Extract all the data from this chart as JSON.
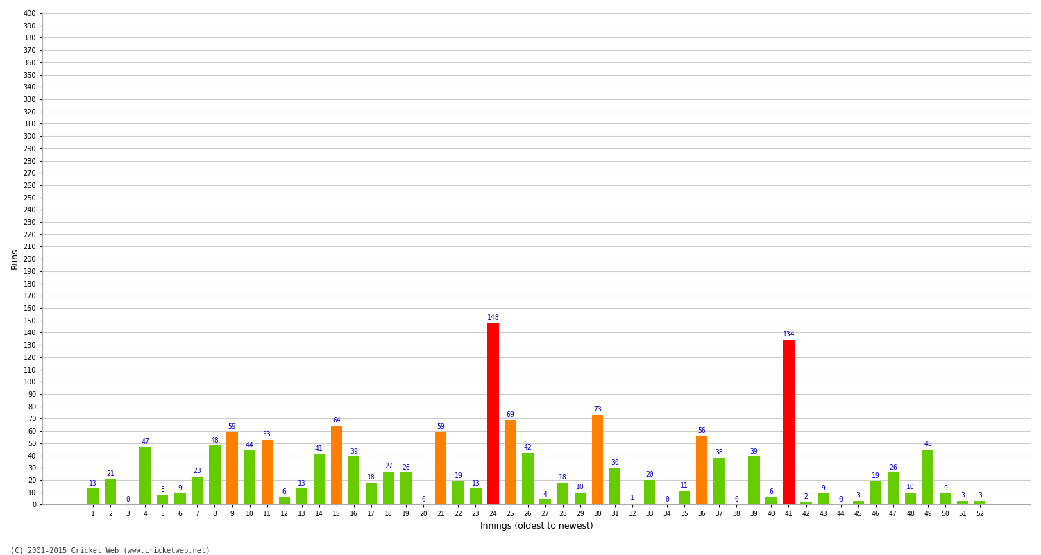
{
  "innings": [
    1,
    2,
    3,
    4,
    5,
    6,
    7,
    8,
    9,
    10,
    11,
    12,
    13,
    14,
    15,
    16,
    17,
    18,
    19,
    20,
    21,
    22,
    23,
    24,
    25,
    26,
    27,
    28,
    29,
    30,
    31,
    32,
    33,
    34,
    35,
    36,
    37,
    38,
    39,
    40,
    41,
    42,
    43,
    44,
    45,
    46,
    47,
    48,
    49,
    50,
    51,
    52
  ],
  "scores": [
    13,
    21,
    0,
    47,
    8,
    9,
    23,
    48,
    59,
    44,
    53,
    6,
    13,
    41,
    64,
    39,
    18,
    27,
    26,
    0,
    59,
    19,
    13,
    148,
    69,
    42,
    4,
    18,
    10,
    73,
    30,
    1,
    20,
    0,
    11,
    56,
    38,
    0,
    39,
    6,
    134,
    2,
    9,
    0,
    3,
    19,
    26,
    10,
    45,
    9,
    3,
    3
  ],
  "colors": [
    "limegreen",
    "limegreen",
    "limegreen",
    "limegreen",
    "limegreen",
    "limegreen",
    "limegreen",
    "limegreen",
    "orange",
    "limegreen",
    "orange",
    "limegreen",
    "limegreen",
    "limegreen",
    "orange",
    "limegreen",
    "limegreen",
    "limegreen",
    "limegreen",
    "limegreen",
    "orange",
    "limegreen",
    "limegreen",
    "red",
    "orange",
    "limegreen",
    "limegreen",
    "limegreen",
    "limegreen",
    "orange",
    "limegreen",
    "limegreen",
    "limegreen",
    "limegreen",
    "limegreen",
    "orange",
    "limegreen",
    "limegreen",
    "limegreen",
    "limegreen",
    "red",
    "limegreen",
    "limegreen",
    "limegreen",
    "limegreen",
    "limegreen",
    "limegreen",
    "limegreen",
    "limegreen",
    "limegreen",
    "limegreen",
    "limegreen"
  ],
  "bar_color_map": {
    "limegreen": "#66cc00",
    "orange": "#ff8000",
    "red": "#ff0000"
  },
  "xlabel": "Innings (oldest to newest)",
  "ylabel": "Runs",
  "ylim": [
    0,
    400
  ],
  "yticks": [
    0,
    10,
    20,
    30,
    40,
    50,
    60,
    70,
    80,
    90,
    100,
    110,
    120,
    130,
    140,
    150,
    160,
    170,
    180,
    190,
    200,
    210,
    220,
    230,
    240,
    250,
    260,
    270,
    280,
    290,
    300,
    310,
    320,
    330,
    340,
    350,
    360,
    370,
    380,
    390,
    400
  ],
  "footer": "(C) 2001-2015 Cricket Web (www.cricketweb.net)",
  "bg_color": "#ffffff",
  "plot_bg_color": "#ffffff",
  "grid_color": "#cccccc",
  "label_color": "#0000cc",
  "title_color": "#000000",
  "axis_label_color": "#000000",
  "title_fontsize": 10,
  "label_fontsize": 7,
  "tick_fontsize": 7,
  "footer_fontsize": 7.5
}
